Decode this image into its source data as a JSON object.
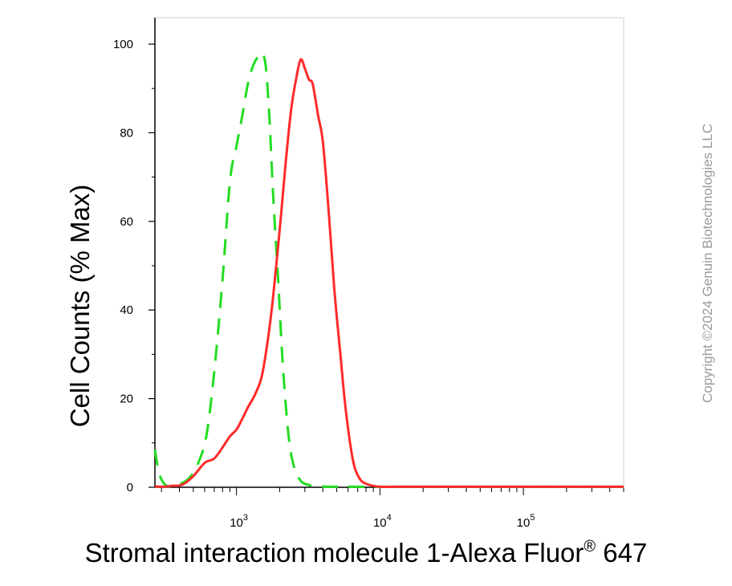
{
  "chart_data": {
    "type": "line",
    "title": "",
    "xlabel": "Stromal interaction molecule 1-Alexa Fluor",
    "xlabel_superscript": "®",
    "xlabel_suffix": " 647",
    "ylabel": "Cell Counts (% Max)",
    "xscale": "log",
    "xlim": [
      270,
      500000
    ],
    "ylim": [
      0,
      100
    ],
    "y_ticks": [
      "0",
      "20",
      "40",
      "60",
      "80",
      "100"
    ],
    "x_ticks": [
      {
        "value": 1000,
        "base": "10",
        "exp": "3"
      },
      {
        "value": 10000,
        "base": "10",
        "exp": "4"
      },
      {
        "value": 100000,
        "base": "10",
        "exp": "5"
      }
    ],
    "grid": false,
    "series": [
      {
        "color": "#ff2a2a",
        "dash": "solid",
        "x": [
          270,
          300,
          350,
          420,
          500,
          600,
          700,
          800,
          900,
          1000,
          1100,
          1200,
          1350,
          1500,
          1650,
          1800,
          2000,
          2200,
          2400,
          2600,
          2800,
          3000,
          3200,
          3400,
          3700,
          4000,
          4400,
          4800,
          5300,
          5800,
          6500,
          7200,
          8000,
          9000,
          10000,
          12000,
          15000,
          30000,
          100000,
          500000
        ],
        "y": [
          0.2,
          0.1,
          0.3,
          0.6,
          2.5,
          5.5,
          6.5,
          9.0,
          11.5,
          13.0,
          15.5,
          18.0,
          21.0,
          25.0,
          33.0,
          43.0,
          58.0,
          73.0,
          85.0,
          92.0,
          96.5,
          94.5,
          92.0,
          91.0,
          84.0,
          78.0,
          62.0,
          45.0,
          30.0,
          17.0,
          6.0,
          2.0,
          0.8,
          0.3,
          0.1,
          0.1,
          0.1,
          0.1,
          0.1,
          0.1
        ]
      },
      {
        "color": "#22dd22",
        "dash": "dashed",
        "x": [
          270,
          290,
          320,
          360,
          420,
          480,
          550,
          620,
          700,
          800,
          900,
          1000,
          1100,
          1200,
          1300,
          1400,
          1500,
          1600,
          1700,
          1800,
          1950,
          2100,
          2300,
          2500,
          2800,
          3200,
          3800,
          5000,
          10000,
          500000
        ],
        "y": [
          8.5,
          3.0,
          0.5,
          0.3,
          1.0,
          2.5,
          6.0,
          12.0,
          26.0,
          47.0,
          69.0,
          77.0,
          84.0,
          91.0,
          95.0,
          97.0,
          98.0,
          95.0,
          83.0,
          66.0,
          47.0,
          28.0,
          12.0,
          5.0,
          1.5,
          0.5,
          0.2,
          0.1,
          0.1,
          0.1
        ]
      }
    ]
  },
  "copyright": "Copyright ©2024 Genuin Biotechnologies LLC"
}
